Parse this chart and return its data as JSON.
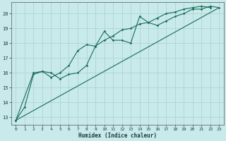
{
  "xlabel": "Humidex (Indice chaleur)",
  "bg_color": "#c8eaea",
  "line_color": "#1a6b5a",
  "grid_color": "#aacece",
  "xlim": [
    -0.5,
    23.5
  ],
  "ylim": [
    12.5,
    20.75
  ],
  "xticks": [
    0,
    1,
    2,
    3,
    4,
    5,
    6,
    7,
    8,
    9,
    10,
    11,
    12,
    13,
    14,
    15,
    16,
    17,
    18,
    19,
    20,
    21,
    22,
    23
  ],
  "yticks": [
    13,
    14,
    15,
    16,
    17,
    18,
    19,
    20
  ],
  "series1": [
    [
      0,
      12.8
    ],
    [
      1,
      13.7
    ],
    [
      2,
      15.9
    ],
    [
      3,
      16.1
    ],
    [
      4,
      16.0
    ],
    [
      5,
      15.6
    ],
    [
      6,
      15.9
    ],
    [
      7,
      16.0
    ],
    [
      8,
      16.5
    ],
    [
      9,
      17.8
    ],
    [
      10,
      18.8
    ],
    [
      11,
      18.2
    ],
    [
      12,
      18.2
    ],
    [
      13,
      18.0
    ],
    [
      14,
      19.8
    ],
    [
      15,
      19.4
    ],
    [
      16,
      19.2
    ],
    [
      17,
      19.5
    ],
    [
      18,
      19.8
    ],
    [
      19,
      20.0
    ],
    [
      20,
      20.3
    ],
    [
      21,
      20.3
    ],
    [
      22,
      20.5
    ],
    [
      23,
      20.4
    ]
  ],
  "series2": [
    [
      0,
      12.8
    ],
    [
      2,
      16.0
    ],
    [
      3,
      16.1
    ],
    [
      4,
      15.7
    ],
    [
      5,
      16.0
    ],
    [
      6,
      16.5
    ],
    [
      7,
      17.5
    ],
    [
      8,
      17.9
    ],
    [
      9,
      17.8
    ],
    [
      10,
      18.2
    ],
    [
      11,
      18.5
    ],
    [
      12,
      18.9
    ],
    [
      13,
      19.0
    ],
    [
      14,
      19.3
    ],
    [
      15,
      19.4
    ],
    [
      16,
      19.7
    ],
    [
      17,
      20.0
    ],
    [
      18,
      20.1
    ],
    [
      19,
      20.3
    ],
    [
      20,
      20.4
    ],
    [
      21,
      20.5
    ],
    [
      22,
      20.4
    ]
  ],
  "trend_x": [
    0,
    23
  ],
  "trend_y": [
    12.8,
    20.4
  ]
}
